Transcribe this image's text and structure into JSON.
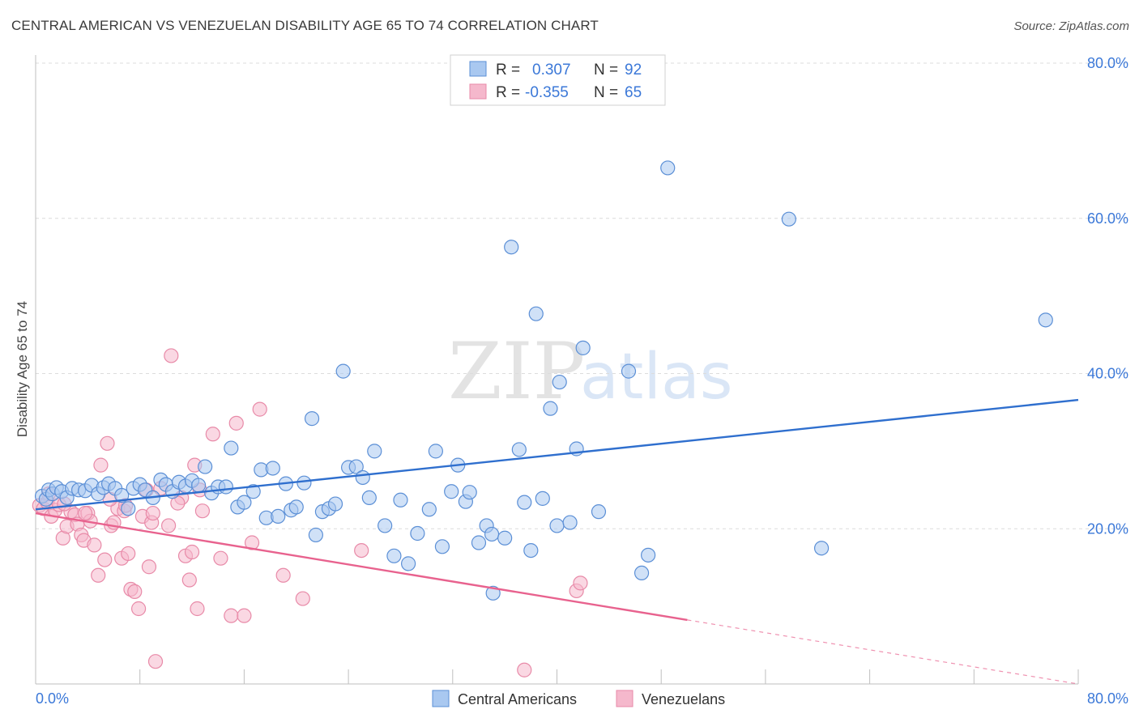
{
  "title": "CENTRAL AMERICAN VS VENEZUELAN DISABILITY AGE 65 TO 74 CORRELATION CHART",
  "source": "Source: ZipAtlas.com",
  "colors": {
    "blue_fill": "#a9c8f0",
    "blue_stroke": "#5b8fd6",
    "blue_line": "#2f6fce",
    "pink_fill": "#f5b8cc",
    "pink_stroke": "#e88aa8",
    "pink_line": "#e8628e",
    "accent_text": "#3b78d8"
  },
  "legend_top": {
    "rows": [
      {
        "r_label": "R =",
        "r_value": "0.307",
        "n_label": "N =",
        "n_value": "92",
        "series": "blue"
      },
      {
        "r_label": "R =",
        "r_value": "-0.355",
        "n_label": "N =",
        "n_value": "65",
        "series": "pink"
      }
    ]
  },
  "chart_data": {
    "type": "scatter",
    "title": "CENTRAL AMERICAN VS VENEZUELAN DISABILITY AGE 65 TO 74 CORRELATION CHART",
    "xlabel": "",
    "ylabel": "Disability Age 65 to 74",
    "xlim": [
      0,
      80
    ],
    "ylim": [
      0,
      80
    ],
    "x_tick_labels": [
      "0.0%",
      "80.0%"
    ],
    "y_tick_labels": [
      "20.0%",
      "40.0%",
      "60.0%",
      "80.0%"
    ],
    "y_ticks": [
      20,
      40,
      60,
      80
    ],
    "watermark": {
      "zip": "ZIP",
      "atlas": "atlas"
    },
    "series": [
      {
        "name": "Central Americans",
        "color": "blue",
        "trend": {
          "x0": 0,
          "y0": 22.5,
          "x1": 80,
          "y1": 36.6,
          "x_solid_end": 80
        },
        "points": [
          [
            0.5,
            24.2
          ],
          [
            0.8,
            23.8
          ],
          [
            1.0,
            25.0
          ],
          [
            1.3,
            24.5
          ],
          [
            1.6,
            25.3
          ],
          [
            2.0,
            24.8
          ],
          [
            2.4,
            24.0
          ],
          [
            2.8,
            25.2
          ],
          [
            3.3,
            25.0
          ],
          [
            3.8,
            24.9
          ],
          [
            4.3,
            25.6
          ],
          [
            4.8,
            24.5
          ],
          [
            5.2,
            25.3
          ],
          [
            5.6,
            25.8
          ],
          [
            6.1,
            25.2
          ],
          [
            6.6,
            24.3
          ],
          [
            7.1,
            22.6
          ],
          [
            7.5,
            25.2
          ],
          [
            8.0,
            25.7
          ],
          [
            8.4,
            25.0
          ],
          [
            9.0,
            24.0
          ],
          [
            9.6,
            26.3
          ],
          [
            10.0,
            25.7
          ],
          [
            10.5,
            24.8
          ],
          [
            11.0,
            26.0
          ],
          [
            11.5,
            25.5
          ],
          [
            12.0,
            26.2
          ],
          [
            12.5,
            25.6
          ],
          [
            13.0,
            28.0
          ],
          [
            13.5,
            24.6
          ],
          [
            14.0,
            25.4
          ],
          [
            14.6,
            25.4
          ],
          [
            15.0,
            30.4
          ],
          [
            15.5,
            22.8
          ],
          [
            16.0,
            23.4
          ],
          [
            16.7,
            24.8
          ],
          [
            17.3,
            27.6
          ],
          [
            17.7,
            21.4
          ],
          [
            18.2,
            27.8
          ],
          [
            18.6,
            21.6
          ],
          [
            19.2,
            25.8
          ],
          [
            19.6,
            22.4
          ],
          [
            20.0,
            22.8
          ],
          [
            20.6,
            25.9
          ],
          [
            21.2,
            34.2
          ],
          [
            21.5,
            19.2
          ],
          [
            22.0,
            22.2
          ],
          [
            22.5,
            22.6
          ],
          [
            23.0,
            23.2
          ],
          [
            23.6,
            40.3
          ],
          [
            24.0,
            27.9
          ],
          [
            24.6,
            28.0
          ],
          [
            25.1,
            26.6
          ],
          [
            25.6,
            24.0
          ],
          [
            26.0,
            30.0
          ],
          [
            26.8,
            20.4
          ],
          [
            27.5,
            16.5
          ],
          [
            28.0,
            23.7
          ],
          [
            28.6,
            15.5
          ],
          [
            29.3,
            19.4
          ],
          [
            30.2,
            22.5
          ],
          [
            30.7,
            30.0
          ],
          [
            31.2,
            17.7
          ],
          [
            31.9,
            24.8
          ],
          [
            32.4,
            28.2
          ],
          [
            33.0,
            23.5
          ],
          [
            33.3,
            24.7
          ],
          [
            34.0,
            18.2
          ],
          [
            34.6,
            20.4
          ],
          [
            35.0,
            19.3
          ],
          [
            35.1,
            11.7
          ],
          [
            36.0,
            18.8
          ],
          [
            36.5,
            56.3
          ],
          [
            37.1,
            30.2
          ],
          [
            37.5,
            23.4
          ],
          [
            38.0,
            17.2
          ],
          [
            38.4,
            47.7
          ],
          [
            38.9,
            23.9
          ],
          [
            39.5,
            35.5
          ],
          [
            40.0,
            20.4
          ],
          [
            40.2,
            38.9
          ],
          [
            41.0,
            20.8
          ],
          [
            41.5,
            30.3
          ],
          [
            42.0,
            43.3
          ],
          [
            43.2,
            22.2
          ],
          [
            45.5,
            40.3
          ],
          [
            46.5,
            14.3
          ],
          [
            47.0,
            16.6
          ],
          [
            48.5,
            66.5
          ],
          [
            57.8,
            59.9
          ],
          [
            60.3,
            17.5
          ],
          [
            77.5,
            46.9
          ]
        ]
      },
      {
        "name": "Venezuelans",
        "color": "pink",
        "trend": {
          "x0": 0,
          "y0": 22.0,
          "x1": 80,
          "y1": 0.0,
          "x_solid_end": 50
        },
        "points": [
          [
            0.3,
            23.0
          ],
          [
            0.6,
            22.6
          ],
          [
            0.9,
            23.4
          ],
          [
            1.2,
            21.6
          ],
          [
            1.5,
            22.4
          ],
          [
            1.8,
            23.1
          ],
          [
            2.1,
            18.8
          ],
          [
            2.4,
            20.3
          ],
          [
            2.7,
            22.2
          ],
          [
            3.0,
            21.8
          ],
          [
            3.2,
            20.6
          ],
          [
            3.5,
            19.2
          ],
          [
            3.7,
            18.5
          ],
          [
            4.0,
            22.0
          ],
          [
            4.2,
            21.0
          ],
          [
            4.5,
            17.9
          ],
          [
            4.8,
            14.0
          ],
          [
            5.0,
            28.2
          ],
          [
            5.3,
            16.0
          ],
          [
            5.5,
            31.0
          ],
          [
            5.8,
            20.4
          ],
          [
            6.0,
            20.8
          ],
          [
            6.3,
            22.6
          ],
          [
            6.6,
            16.2
          ],
          [
            6.8,
            22.3
          ],
          [
            7.1,
            16.8
          ],
          [
            7.3,
            12.2
          ],
          [
            7.6,
            11.9
          ],
          [
            7.9,
            9.7
          ],
          [
            8.2,
            21.6
          ],
          [
            8.5,
            25.0
          ],
          [
            8.7,
            15.1
          ],
          [
            8.9,
            20.8
          ],
          [
            9.2,
            2.9
          ],
          [
            9.6,
            25.2
          ],
          [
            10.2,
            20.4
          ],
          [
            10.4,
            42.3
          ],
          [
            11.2,
            24.0
          ],
          [
            11.5,
            16.5
          ],
          [
            11.8,
            13.4
          ],
          [
            12.0,
            17.0
          ],
          [
            12.2,
            28.2
          ],
          [
            12.4,
            9.7
          ],
          [
            12.6,
            25.0
          ],
          [
            12.8,
            22.3
          ],
          [
            13.6,
            32.2
          ],
          [
            14.2,
            16.2
          ],
          [
            15.0,
            8.8
          ],
          [
            15.4,
            33.6
          ],
          [
            16.0,
            8.8
          ],
          [
            16.6,
            18.2
          ],
          [
            17.2,
            35.4
          ],
          [
            19.0,
            14.0
          ],
          [
            20.5,
            11.0
          ],
          [
            25.0,
            17.2
          ],
          [
            37.5,
            1.8
          ],
          [
            41.5,
            12.0
          ],
          [
            41.8,
            13.0
          ],
          [
            1.0,
            24.5
          ],
          [
            2.2,
            23.2
          ],
          [
            3.8,
            22.0
          ],
          [
            5.7,
            23.8
          ],
          [
            6.9,
            23.0
          ],
          [
            9.0,
            22.0
          ],
          [
            10.9,
            23.3
          ]
        ]
      }
    ]
  },
  "bottom_legend": {
    "items": [
      {
        "label": "Central Americans",
        "series": "blue"
      },
      {
        "label": "Venezuelans",
        "series": "pink"
      }
    ]
  }
}
